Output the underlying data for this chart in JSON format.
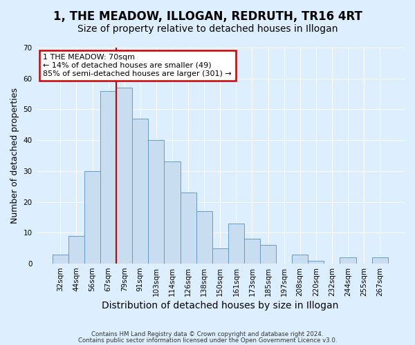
{
  "title": "1, THE MEADOW, ILLOGAN, REDRUTH, TR16 4RT",
  "subtitle": "Size of property relative to detached houses in Illogan",
  "xlabel": "Distribution of detached houses by size in Illogan",
  "ylabel": "Number of detached properties",
  "bar_labels": [
    "32sqm",
    "44sqm",
    "56sqm",
    "67sqm",
    "79sqm",
    "91sqm",
    "103sqm",
    "114sqm",
    "126sqm",
    "138sqm",
    "150sqm",
    "161sqm",
    "173sqm",
    "185sqm",
    "197sqm",
    "208sqm",
    "220sqm",
    "232sqm",
    "244sqm",
    "255sqm",
    "267sqm"
  ],
  "bar_values": [
    3,
    9,
    30,
    56,
    57,
    47,
    40,
    33,
    23,
    17,
    5,
    13,
    8,
    6,
    0,
    3,
    1,
    0,
    2,
    0,
    2
  ],
  "bar_color": "#c9ddf0",
  "bar_edge_color": "#6699cc",
  "vline_color": "#cc0000",
  "vline_x_index": 3,
  "annotation_title": "1 THE MEADOW: 70sqm",
  "annotation_line1": "← 14% of detached houses are smaller (49)",
  "annotation_line2": "85% of semi-detached houses are larger (301) →",
  "annotation_box_color": "#ffffff",
  "annotation_box_edge": "#cc0000",
  "ylim": [
    0,
    70
  ],
  "yticks": [
    0,
    10,
    20,
    30,
    40,
    50,
    60,
    70
  ],
  "footer1": "Contains HM Land Registry data © Crown copyright and database right 2024.",
  "footer2": "Contains public sector information licensed under the Open Government Licence v3.0.",
  "bg_color": "#ddeeff",
  "plot_bg_color": "#ddeeff",
  "title_fontsize": 12,
  "subtitle_fontsize": 10,
  "xlabel_fontsize": 10,
  "ylabel_fontsize": 9
}
